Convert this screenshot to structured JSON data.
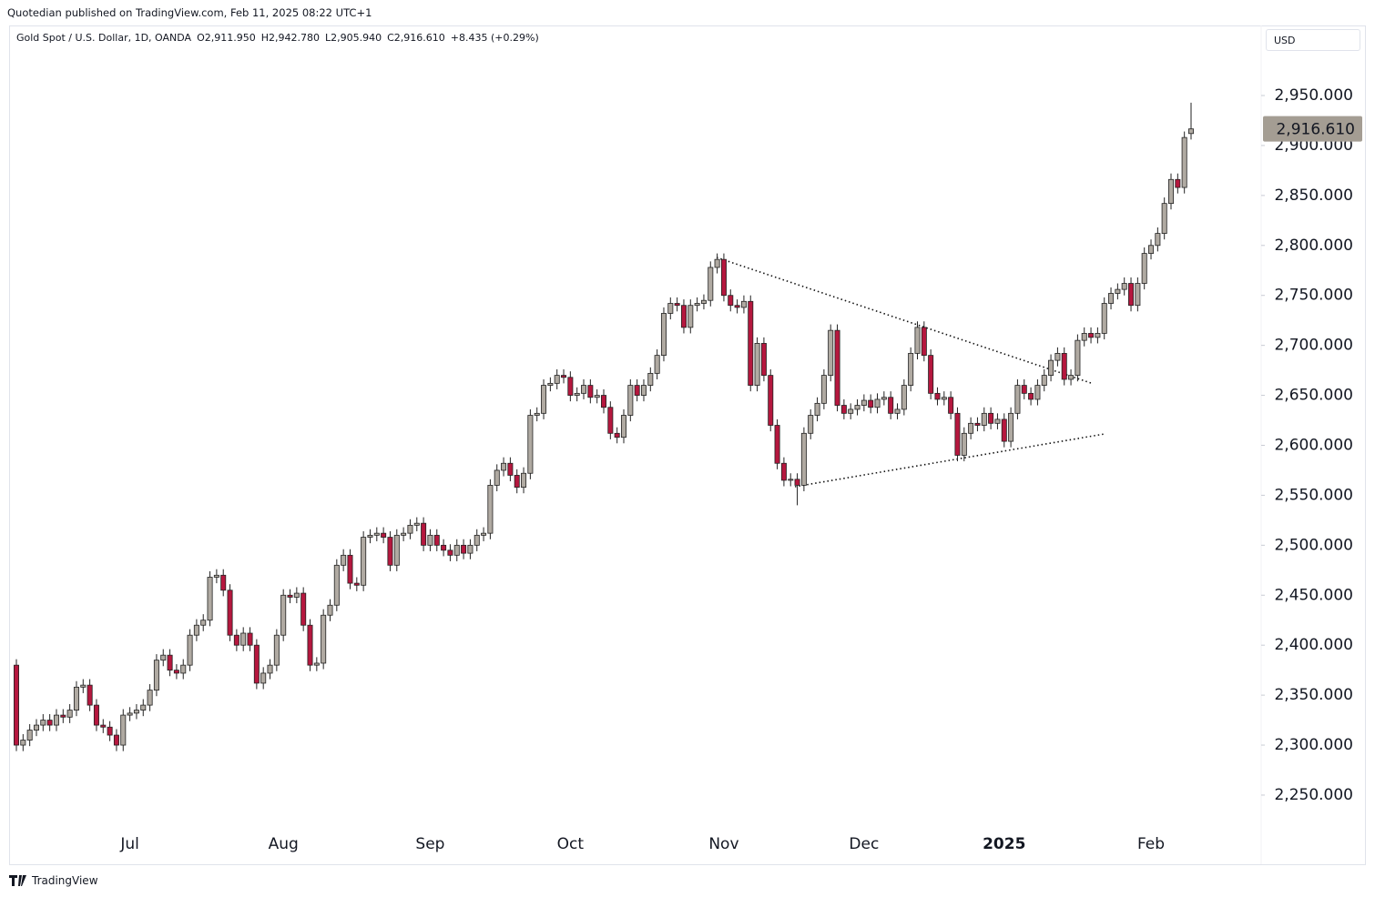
{
  "header": {
    "published": "Quotedian published on TradingView.com, Feb 11, 2025 08:22 UTC+1",
    "currency": "USD",
    "footer": "TradingView"
  },
  "chart_data": {
    "type": "candlestick",
    "title": "Gold Spot / U.S. Dollar, 1D, OANDA",
    "ohlc_text": [
      "O2,911.950",
      "H2,942.780",
      "L2,905.940",
      "C2,916.610"
    ],
    "change_text": "+8.435 (+0.29%)",
    "last_price_label": "2,916.610",
    "up_color": "#b0aaa2",
    "down_color": "#b5173e",
    "border_color": "#222222",
    "categories": [
      null,
      null,
      null,
      null,
      null,
      null,
      null,
      null,
      null,
      null,
      null,
      null,
      null,
      null,
      null,
      null,
      null,
      "Jul",
      null,
      null,
      null,
      null,
      null,
      null,
      null,
      null,
      null,
      null,
      null,
      null,
      null,
      null,
      null,
      null,
      null,
      null,
      null,
      null,
      null,
      null,
      "Aug",
      null,
      null,
      null,
      null,
      null,
      null,
      null,
      null,
      null,
      null,
      null,
      null,
      null,
      null,
      null,
      null,
      null,
      null,
      null,
      null,
      null,
      "Sep",
      null,
      null,
      null,
      null,
      null,
      null,
      null,
      null,
      null,
      null,
      null,
      null,
      null,
      null,
      null,
      null,
      null,
      null,
      null,
      null,
      "Oct",
      null,
      null,
      null,
      null,
      null,
      null,
      null,
      null,
      null,
      null,
      null,
      null,
      null,
      null,
      null,
      null,
      null,
      null,
      null,
      null,
      null,
      null,
      "Nov",
      null,
      null,
      null,
      null,
      null,
      null,
      null,
      null,
      null,
      null,
      null,
      null,
      null,
      null,
      null,
      null,
      null,
      null,
      null,
      null,
      "Dec",
      null,
      null,
      null,
      null,
      null,
      null,
      null,
      null,
      null,
      null,
      null,
      null,
      null,
      null,
      null,
      null,
      null,
      null,
      null,
      null,
      "2025",
      null,
      null,
      null,
      null,
      null,
      null,
      null,
      null,
      null,
      null,
      null,
      null,
      null,
      null,
      null,
      null,
      null,
      null,
      null,
      null,
      null,
      "Feb",
      null,
      null,
      null,
      null,
      null,
      null
    ],
    "open": [
      2380,
      2300,
      2305,
      2315,
      2320,
      2325,
      2320,
      2330,
      2328,
      2335,
      2358,
      2360,
      2340,
      2320,
      2318,
      2310,
      2300,
      2330,
      2332,
      2335,
      2340,
      2355,
      2385,
      2390,
      2375,
      2372,
      2380,
      2410,
      2420,
      2425,
      2468,
      2470,
      2455,
      2410,
      2400,
      2412,
      2400,
      2362,
      2372,
      2380,
      2410,
      2450,
      2448,
      2452,
      2420,
      2380,
      2382,
      2430,
      2440,
      2480,
      2490,
      2462,
      2460,
      2508,
      2510,
      2512,
      2508,
      2480,
      2510,
      2512,
      2520,
      2522,
      2500,
      2510,
      2500,
      2495,
      2490,
      2500,
      2492,
      2500,
      2510,
      2512,
      2560,
      2575,
      2582,
      2570,
      2558,
      2572,
      2630,
      2632,
      2660,
      2662,
      2670,
      2668,
      2650,
      2652,
      2660,
      2648,
      2650,
      2638,
      2612,
      2608,
      2630,
      2660,
      2650,
      2660,
      2672,
      2690,
      2732,
      2742,
      2740,
      2718,
      2740,
      2742,
      2745,
      2778,
      2786,
      2750,
      2740,
      2738,
      2744,
      2660,
      2702,
      2670,
      2620,
      2582,
      2565,
      2566,
      2560,
      2612,
      2630,
      2642,
      2670,
      2715,
      2640,
      2632,
      2636,
      2640,
      2645,
      2638,
      2646,
      2648,
      2632,
      2636,
      2660,
      2692,
      2718,
      2690,
      2652,
      2646,
      2648,
      2632,
      2590,
      2612,
      2622,
      2620,
      2632,
      2622,
      2626,
      2604,
      2632,
      2660,
      2652,
      2646,
      2660,
      2670,
      2685,
      2692,
      2666,
      2670,
      2705,
      2712,
      2708,
      2712,
      2742,
      2752,
      2756,
      2762,
      2740,
      2762,
      2792,
      2800,
      2812,
      2842,
      2866,
      2858,
      2911.95
    ],
    "high": [
      2386,
      2311,
      2321,
      2326,
      2331,
      2331,
      2336,
      2336,
      2341,
      2364,
      2366,
      2366,
      2346,
      2326,
      2324,
      2316,
      2336,
      2338,
      2341,
      2346,
      2361,
      2391,
      2396,
      2396,
      2381,
      2386,
      2416,
      2426,
      2431,
      2474,
      2476,
      2476,
      2461,
      2416,
      2418,
      2418,
      2406,
      2378,
      2386,
      2416,
      2456,
      2456,
      2458,
      2458,
      2426,
      2388,
      2436,
      2446,
      2486,
      2496,
      2496,
      2468,
      2514,
      2516,
      2518,
      2518,
      2514,
      2516,
      2518,
      2526,
      2528,
      2528,
      2516,
      2516,
      2506,
      2501,
      2506,
      2506,
      2506,
      2516,
      2518,
      2566,
      2581,
      2588,
      2588,
      2576,
      2578,
      2636,
      2638,
      2666,
      2668,
      2676,
      2676,
      2674,
      2658,
      2666,
      2666,
      2656,
      2656,
      2644,
      2618,
      2636,
      2666,
      2666,
      2666,
      2678,
      2696,
      2738,
      2748,
      2748,
      2746,
      2746,
      2748,
      2751,
      2784,
      2792,
      2792,
      2756,
      2746,
      2750,
      2750,
      2708,
      2708,
      2676,
      2626,
      2588,
      2572,
      2572,
      2618,
      2636,
      2648,
      2676,
      2721,
      2721,
      2646,
      2642,
      2646,
      2651,
      2651,
      2652,
      2654,
      2654,
      2642,
      2666,
      2698,
      2724,
      2724,
      2696,
      2658,
      2654,
      2654,
      2638,
      2618,
      2628,
      2628,
      2638,
      2638,
      2632,
      2632,
      2638,
      2666,
      2666,
      2658,
      2666,
      2676,
      2691,
      2698,
      2698,
      2676,
      2711,
      2718,
      2718,
      2718,
      2748,
      2758,
      2762,
      2768,
      2768,
      2768,
      2798,
      2806,
      2818,
      2848,
      2872,
      2872,
      2914,
      2942.78
    ],
    "low": [
      2294,
      2294,
      2299,
      2309,
      2314,
      2314,
      2314,
      2322,
      2322,
      2329,
      2352,
      2334,
      2314,
      2312,
      2304,
      2294,
      2294,
      2324,
      2326,
      2329,
      2334,
      2349,
      2379,
      2369,
      2366,
      2366,
      2374,
      2404,
      2414,
      2419,
      2462,
      2449,
      2404,
      2394,
      2394,
      2394,
      2356,
      2356,
      2366,
      2374,
      2404,
      2442,
      2442,
      2414,
      2374,
      2374,
      2376,
      2424,
      2434,
      2474,
      2456,
      2454,
      2454,
      2502,
      2504,
      2502,
      2474,
      2474,
      2504,
      2506,
      2514,
      2494,
      2494,
      2494,
      2489,
      2484,
      2484,
      2486,
      2486,
      2494,
      2504,
      2506,
      2554,
      2569,
      2564,
      2552,
      2552,
      2566,
      2624,
      2626,
      2654,
      2656,
      2662,
      2644,
      2644,
      2646,
      2642,
      2642,
      2632,
      2606,
      2602,
      2602,
      2624,
      2644,
      2644,
      2654,
      2666,
      2684,
      2726,
      2734,
      2712,
      2712,
      2734,
      2736,
      2739,
      2772,
      2744,
      2734,
      2732,
      2732,
      2654,
      2654,
      2664,
      2614,
      2576,
      2559,
      2559,
      2540,
      2554,
      2606,
      2624,
      2636,
      2664,
      2634,
      2626,
      2626,
      2630,
      2634,
      2632,
      2632,
      2640,
      2626,
      2626,
      2630,
      2654,
      2686,
      2684,
      2646,
      2640,
      2640,
      2626,
      2584,
      2584,
      2606,
      2614,
      2614,
      2616,
      2616,
      2598,
      2598,
      2626,
      2646,
      2640,
      2640,
      2654,
      2664,
      2679,
      2660,
      2660,
      2664,
      2699,
      2702,
      2702,
      2706,
      2736,
      2746,
      2750,
      2734,
      2734,
      2756,
      2786,
      2794,
      2806,
      2836,
      2852,
      2852,
      2905.94
    ],
    "close": [
      2300,
      2305,
      2315,
      2320,
      2325,
      2320,
      2330,
      2328,
      2335,
      2358,
      2360,
      2340,
      2320,
      2318,
      2310,
      2300,
      2330,
      2332,
      2335,
      2340,
      2355,
      2385,
      2390,
      2375,
      2372,
      2380,
      2410,
      2420,
      2425,
      2468,
      2470,
      2455,
      2410,
      2400,
      2412,
      2400,
      2362,
      2372,
      2380,
      2410,
      2450,
      2448,
      2452,
      2420,
      2380,
      2382,
      2430,
      2440,
      2480,
      2490,
      2462,
      2460,
      2508,
      2510,
      2512,
      2508,
      2480,
      2510,
      2512,
      2520,
      2522,
      2500,
      2510,
      2500,
      2495,
      2490,
      2500,
      2492,
      2500,
      2510,
      2512,
      2560,
      2575,
      2582,
      2570,
      2558,
      2572,
      2630,
      2632,
      2660,
      2662,
      2670,
      2668,
      2650,
      2652,
      2660,
      2648,
      2650,
      2638,
      2612,
      2608,
      2630,
      2660,
      2650,
      2660,
      2672,
      2690,
      2732,
      2742,
      2740,
      2718,
      2740,
      2742,
      2745,
      2778,
      2786,
      2750,
      2740,
      2738,
      2744,
      2660,
      2702,
      2670,
      2620,
      2582,
      2565,
      2566,
      2560,
      2612,
      2630,
      2642,
      2670,
      2715,
      2640,
      2632,
      2636,
      2640,
      2645,
      2638,
      2646,
      2648,
      2632,
      2636,
      2660,
      2692,
      2718,
      2690,
      2652,
      2646,
      2648,
      2632,
      2590,
      2612,
      2622,
      2620,
      2632,
      2622,
      2626,
      2604,
      2632,
      2660,
      2652,
      2646,
      2660,
      2670,
      2685,
      2692,
      2666,
      2670,
      2705,
      2712,
      2708,
      2712,
      2742,
      2752,
      2756,
      2762,
      2740,
      2762,
      2792,
      2800,
      2812,
      2842,
      2866,
      2858,
      2908,
      2916.61
    ],
    "ylim": [
      2217.2,
      3020.1
    ],
    "yticks": [
      {
        "value": 2250,
        "label": "2,250.000"
      },
      {
        "value": 2300,
        "label": "2,300.000"
      },
      {
        "value": 2350,
        "label": "2,350.000"
      },
      {
        "value": 2400,
        "label": "2,400.000"
      },
      {
        "value": 2450,
        "label": "2,450.000"
      },
      {
        "value": 2500,
        "label": "2,500.000"
      },
      {
        "value": 2550,
        "label": "2,550.000"
      },
      {
        "value": 2600,
        "label": "2,600.000"
      },
      {
        "value": 2650,
        "label": "2,650.000"
      },
      {
        "value": 2700,
        "label": "2,700.000"
      },
      {
        "value": 2750,
        "label": "2,750.000"
      },
      {
        "value": 2800,
        "label": "2,800.000"
      },
      {
        "value": 2850,
        "label": "2,850.000"
      },
      {
        "value": 2900,
        "label": "2,900.000"
      },
      {
        "value": 2950,
        "label": "2,950.000"
      }
    ],
    "grid": false
  }
}
